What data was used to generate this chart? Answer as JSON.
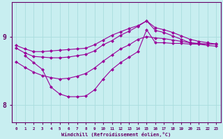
{
  "xlabel": "Windchill (Refroidissement éolien,°C)",
  "bg_color": "#c8eef0",
  "line_color": "#990099",
  "grid_color": "#aadddd",
  "axis_color": "#660066",
  "xlim": [
    -0.5,
    23.5
  ],
  "ylim": [
    7.75,
    9.5
  ],
  "xticks": [
    0,
    1,
    2,
    3,
    4,
    5,
    6,
    7,
    8,
    9,
    10,
    11,
    12,
    13,
    14,
    15,
    16,
    17,
    18,
    19,
    20,
    21,
    22,
    23
  ],
  "yticks": [
    8,
    9
  ],
  "line1_x": [
    0,
    1,
    2,
    3,
    4,
    5,
    6,
    7,
    8,
    9,
    10,
    11,
    12,
    13,
    14,
    15,
    16,
    17,
    18,
    19,
    20,
    21,
    22,
    23
  ],
  "line1_y": [
    8.87,
    8.82,
    8.78,
    8.78,
    8.79,
    8.8,
    8.81,
    8.82,
    8.83,
    8.88,
    8.95,
    9.02,
    9.07,
    9.12,
    9.16,
    9.23,
    9.13,
    9.1,
    9.06,
    9.01,
    8.96,
    8.93,
    8.91,
    8.89
  ],
  "line2_x": [
    0,
    1,
    2,
    3,
    4,
    5,
    6,
    7,
    8,
    9,
    10,
    11,
    12,
    13,
    14,
    15,
    16,
    17,
    18,
    19,
    20,
    21,
    22,
    23
  ],
  "line2_y": [
    8.83,
    8.76,
    8.71,
    8.7,
    8.69,
    8.69,
    8.7,
    8.72,
    8.74,
    8.79,
    8.88,
    8.94,
    9.02,
    9.08,
    9.15,
    9.23,
    9.09,
    9.06,
    9.01,
    8.96,
    8.91,
    8.89,
    8.87,
    8.86
  ],
  "line3_x": [
    0,
    1,
    2,
    3,
    4,
    5,
    6,
    7,
    8,
    9,
    10,
    11,
    12,
    13,
    14,
    15,
    16,
    17,
    18,
    19,
    20,
    21,
    22,
    23
  ],
  "line3_y": [
    8.63,
    8.55,
    8.48,
    8.43,
    8.4,
    8.38,
    8.39,
    8.42,
    8.46,
    8.54,
    8.64,
    8.73,
    8.82,
    8.88,
    8.96,
    9.0,
    8.98,
    8.97,
    8.95,
    8.93,
    8.91,
    8.9,
    8.89,
    8.89
  ],
  "line4_x": [
    1,
    2,
    3,
    4,
    5,
    6,
    7,
    8,
    9,
    10,
    11,
    12,
    13,
    14,
    15,
    16,
    17,
    18,
    19,
    20,
    21,
    22,
    23
  ],
  "line4_y": [
    8.72,
    8.62,
    8.52,
    8.26,
    8.16,
    8.12,
    8.12,
    8.13,
    8.22,
    8.38,
    8.52,
    8.62,
    8.7,
    8.78,
    9.1,
    8.91,
    8.91,
    8.9,
    8.9,
    8.89,
    8.89,
    8.89,
    8.89
  ]
}
